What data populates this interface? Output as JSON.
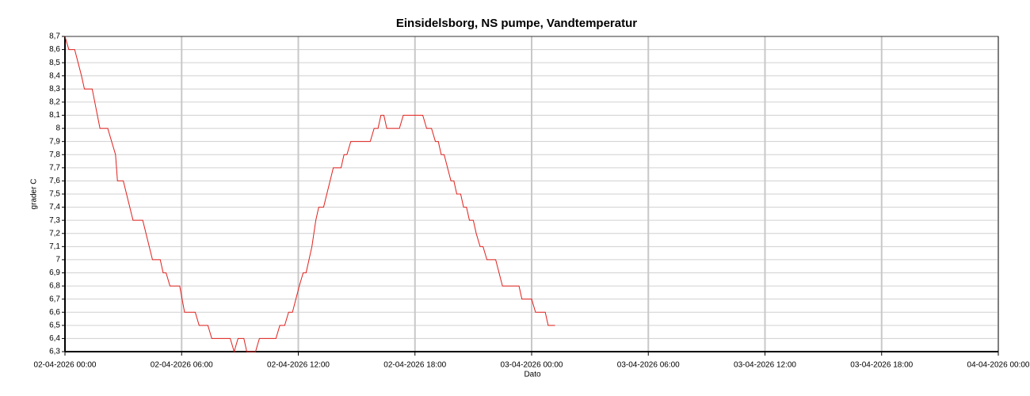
{
  "chart_data": {
    "type": "line",
    "title": "Einsidelsborg, NS pumpe, Vandtemperatur",
    "x_label": "Dato",
    "y_label": "grader C",
    "grid": true,
    "x": [
      "02-04-2026 00:00",
      "02-04-2026 00:12",
      "02-04-2026 00:30",
      "02-04-2026 00:51",
      "02-04-2026 01:00",
      "02-04-2026 01:24",
      "02-04-2026 01:48",
      "02-04-2026 02:12",
      "02-04-2026 02:36",
      "02-04-2026 02:42",
      "02-04-2026 03:00",
      "02-04-2026 03:30",
      "02-04-2026 04:00",
      "02-04-2026 04:30",
      "02-04-2026 04:54",
      "02-04-2026 05:03",
      "02-04-2026 05:12",
      "02-04-2026 05:24",
      "02-04-2026 05:54",
      "02-04-2026 06:09",
      "02-04-2026 06:42",
      "02-04-2026 06:54",
      "02-04-2026 07:21",
      "02-04-2026 07:33",
      "02-04-2026 08:30",
      "02-04-2026 08:42",
      "02-04-2026 08:54",
      "02-04-2026 09:12",
      "02-04-2026 09:21",
      "02-04-2026 09:48",
      "02-04-2026 10:00",
      "02-04-2026 10:51",
      "02-04-2026 11:03",
      "02-04-2026 11:18",
      "02-04-2026 11:30",
      "02-04-2026 11:42",
      "02-04-2026 12:03",
      "02-04-2026 12:15",
      "02-04-2026 12:24",
      "02-04-2026 12:42",
      "02-04-2026 12:54",
      "02-04-2026 13:03",
      "02-04-2026 13:18",
      "02-04-2026 13:48",
      "02-04-2026 14:12",
      "02-04-2026 14:21",
      "02-04-2026 14:30",
      "02-04-2026 14:42",
      "02-04-2026 15:42",
      "02-04-2026 15:54",
      "02-04-2026 16:06",
      "02-04-2026 16:15",
      "02-04-2026 16:24",
      "02-04-2026 16:33",
      "02-04-2026 17:12",
      "02-04-2026 17:24",
      "02-04-2026 18:24",
      "02-04-2026 18:36",
      "02-04-2026 18:51",
      "02-04-2026 19:03",
      "02-04-2026 19:12",
      "02-04-2026 19:21",
      "02-04-2026 19:30",
      "02-04-2026 19:51",
      "02-04-2026 20:00",
      "02-04-2026 20:09",
      "02-04-2026 20:21",
      "02-04-2026 20:30",
      "02-04-2026 20:39",
      "02-04-2026 20:48",
      "02-04-2026 21:00",
      "02-04-2026 21:09",
      "02-04-2026 21:21",
      "02-04-2026 21:30",
      "02-04-2026 21:42",
      "02-04-2026 22:09",
      "02-04-2026 22:30",
      "02-04-2026 23:21",
      "02-04-2026 23:30",
      "03-04-2026 00:00",
      "03-04-2026 00:12",
      "03-04-2026 00:42",
      "03-04-2026 00:51",
      "03-04-2026 01:12"
    ],
    "series": [
      {
        "color": "#e0201c",
        "values": [
          8.7,
          8.6,
          8.6,
          8.4,
          8.3,
          8.3,
          8.0,
          8.0,
          7.8,
          7.6,
          7.6,
          7.3,
          7.3,
          7.0,
          7.0,
          6.9,
          6.9,
          6.8,
          6.8,
          6.6,
          6.6,
          6.5,
          6.5,
          6.4,
          6.4,
          6.3,
          6.4,
          6.4,
          6.3,
          6.3,
          6.4,
          6.4,
          6.5,
          6.5,
          6.6,
          6.6,
          6.8,
          6.9,
          6.9,
          7.1,
          7.3,
          7.4,
          7.4,
          7.7,
          7.7,
          7.8,
          7.8,
          7.9,
          7.9,
          8.0,
          8.0,
          8.1,
          8.1,
          8.0,
          8.0,
          8.1,
          8.1,
          8.0,
          8.0,
          7.9,
          7.9,
          7.8,
          7.8,
          7.6,
          7.6,
          7.5,
          7.5,
          7.4,
          7.4,
          7.3,
          7.3,
          7.2,
          7.1,
          7.1,
          7.0,
          7.0,
          6.8,
          6.8,
          6.7,
          6.7,
          6.6,
          6.6,
          6.5,
          6.5
        ]
      }
    ],
    "xlim": [
      "02-04-2026 00:00",
      "04-04-2026 00:00"
    ],
    "xticks": [
      "02-04-2026 00:00",
      "02-04-2026 06:00",
      "02-04-2026 12:00",
      "02-04-2026 18:00",
      "03-04-2026 00:00",
      "03-04-2026 06:00",
      "03-04-2026 12:00",
      "03-04-2026 18:00",
      "04-04-2026 00:00"
    ],
    "ylim": [
      6.3,
      8.7
    ],
    "yticks": [
      {
        "value": 6.3,
        "label": "6,3"
      },
      {
        "value": 6.4,
        "label": "6,4"
      },
      {
        "value": 6.5,
        "label": "6,5"
      },
      {
        "value": 6.6,
        "label": "6,6"
      },
      {
        "value": 6.7,
        "label": "6,7"
      },
      {
        "value": 6.8,
        "label": "6,8"
      },
      {
        "value": 6.9,
        "label": "6,9"
      },
      7,
      {
        "value": 7.1,
        "label": "7,1"
      },
      {
        "value": 7.2,
        "label": "7,2"
      },
      {
        "value": 7.3,
        "label": "7,3"
      },
      {
        "value": 7.4,
        "label": "7,4"
      },
      {
        "value": 7.5,
        "label": "7,5"
      },
      {
        "value": 7.6,
        "label": "7,6"
      },
      {
        "value": 7.7,
        "label": "7,7"
      },
      {
        "value": 7.8,
        "label": "7,8"
      },
      {
        "value": 7.9,
        "label": "7,9"
      },
      8,
      {
        "value": 8.1,
        "label": "8,1"
      },
      {
        "value": 8.2,
        "label": "8,2"
      },
      {
        "value": 8.3,
        "label": "8,3"
      },
      {
        "value": 8.4,
        "label": "8,4"
      },
      {
        "value": 8.5,
        "label": "8,5"
      },
      {
        "value": 8.6,
        "label": "8,6"
      },
      {
        "value": 8.7,
        "label": "8,7"
      }
    ]
  }
}
